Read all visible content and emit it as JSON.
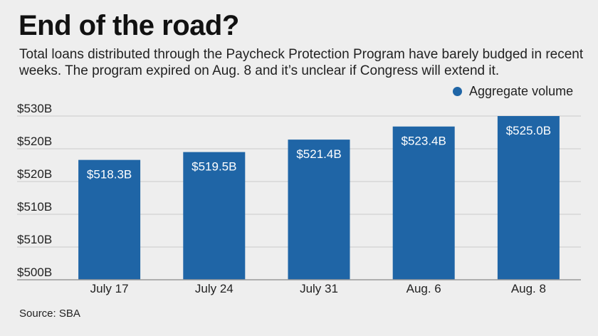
{
  "title": "End of the road?",
  "subtitle": "Total loans distributed through the Paycheck Protection Program have barely budged in recent weeks. The program expired on Aug. 8 and it’s unclear if Congress will extend it.",
  "source": "Source: SBA",
  "colors": {
    "bar": "#1f65a6",
    "grid": "#c9c9c9",
    "axis": "#9a9a9a",
    "label": "#ffffff",
    "background": "#eeeeee"
  },
  "chart_data": {
    "type": "bar",
    "categories": [
      "July 17",
      "July 24",
      "July 31",
      "Aug. 6",
      "Aug. 8"
    ],
    "series": [
      {
        "name": "Aggregate volume",
        "values": [
          518.3,
          519.5,
          521.4,
          523.4,
          525.0
        ],
        "labels": [
          "$518.3B",
          "$519.5B",
          "$521.4B",
          "$523.4B",
          "$525.0B"
        ]
      }
    ],
    "y_ticks": [
      "$500B",
      "$510B",
      "$510B",
      "$520B",
      "$520B",
      "$530B"
    ],
    "ylim": [
      500,
      525
    ],
    "grid": true,
    "legend_position": "top-right"
  }
}
